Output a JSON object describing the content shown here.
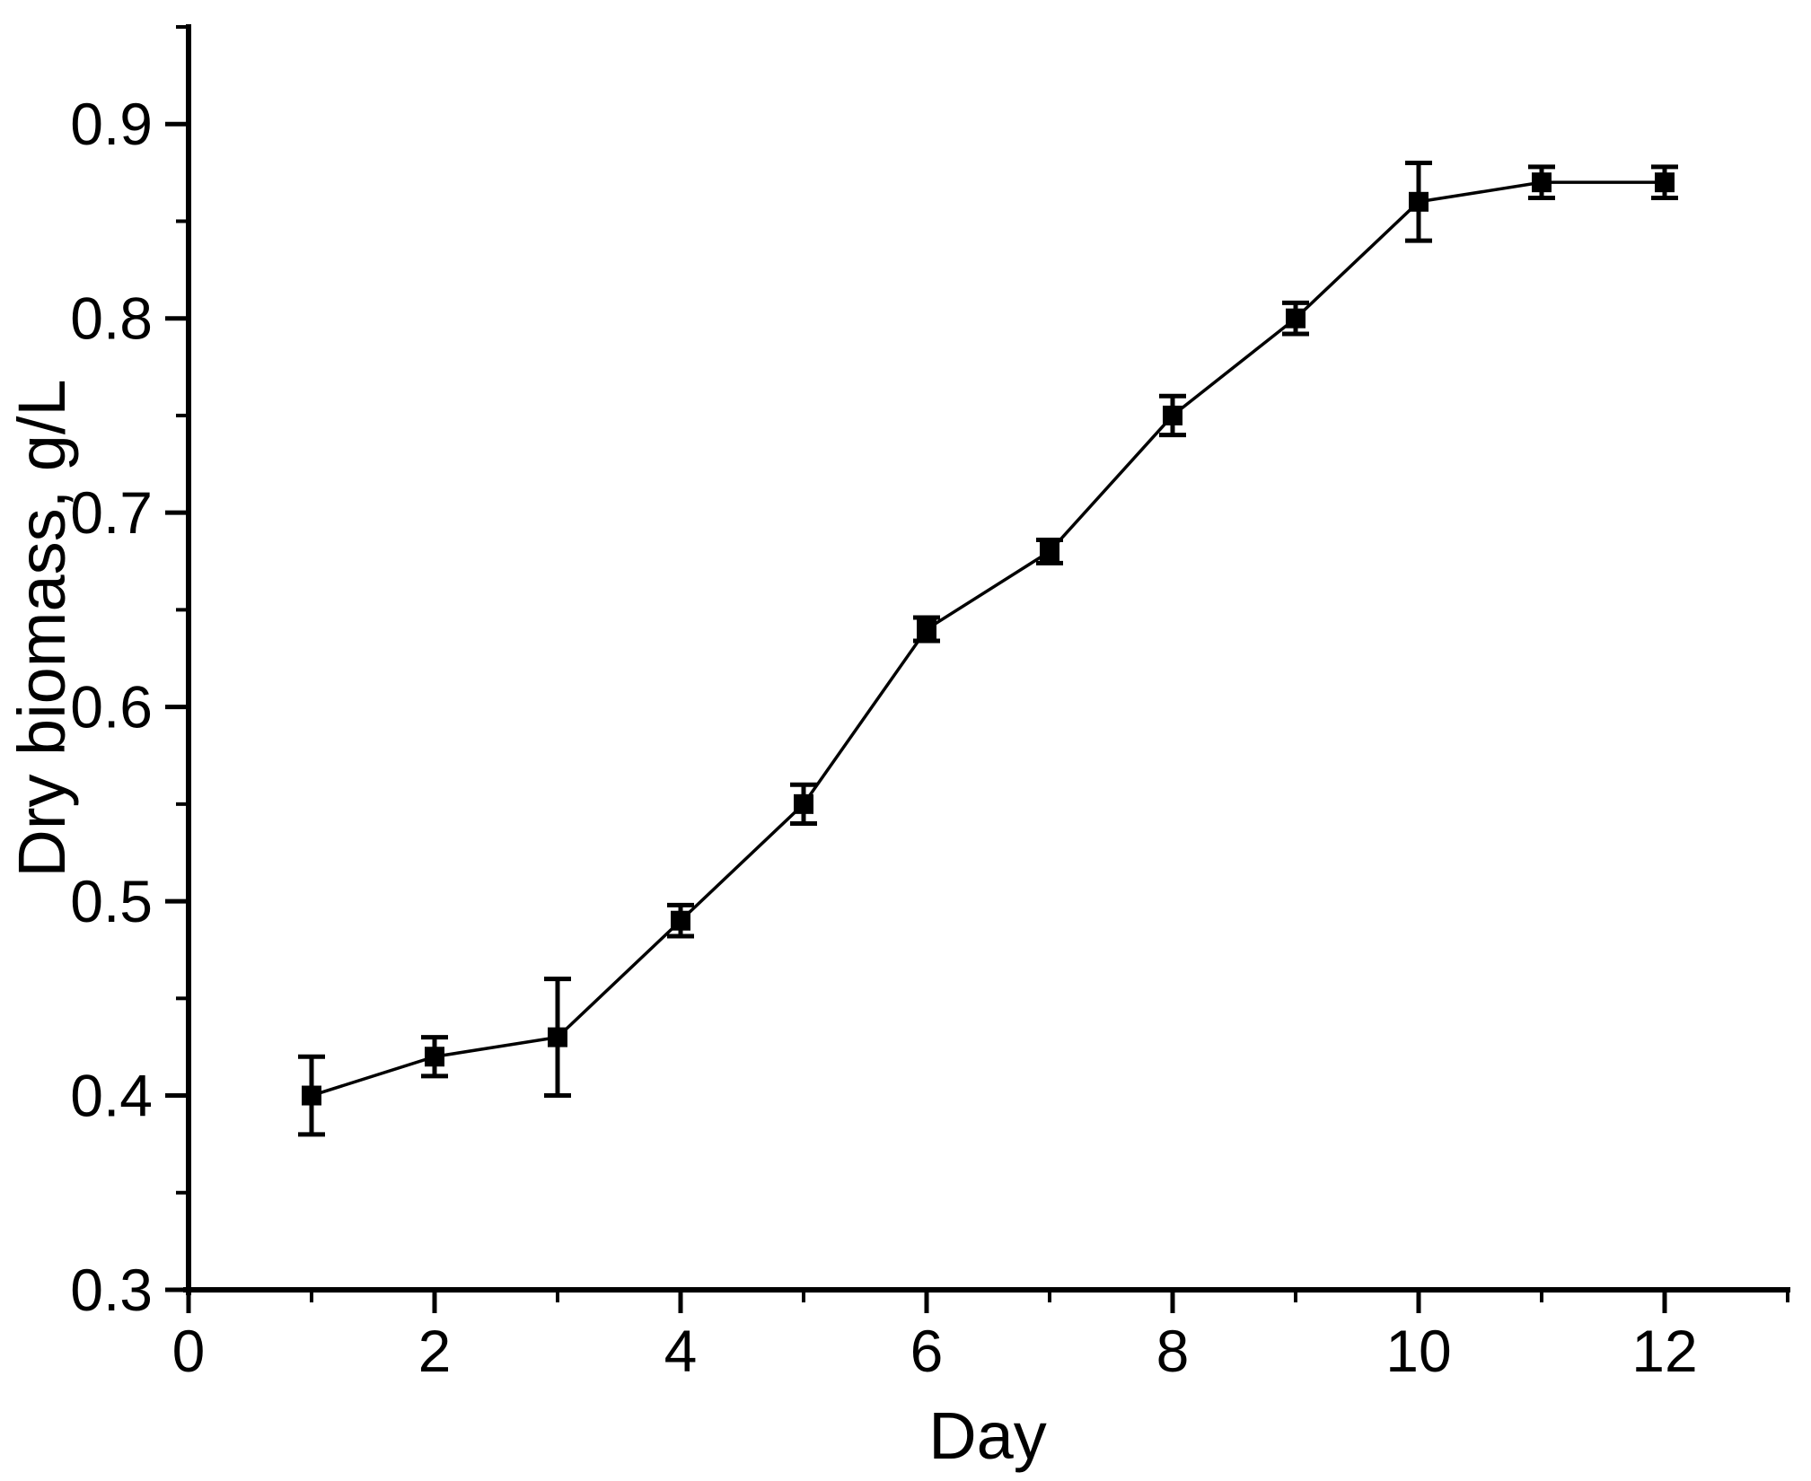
{
  "page": {
    "background": "#ffffff"
  },
  "chart_data": {
    "type": "line",
    "title": "",
    "xlabel": "Day",
    "ylabel": "Dry biomass, g/L",
    "x": [
      1,
      2,
      3,
      4,
      5,
      6,
      7,
      8,
      9,
      10,
      11,
      12
    ],
    "series": [
      {
        "name": "Dry biomass",
        "values": [
          0.4,
          0.42,
          0.43,
          0.49,
          0.55,
          0.64,
          0.68,
          0.75,
          0.8,
          0.86,
          0.87,
          0.87
        ],
        "errors": [
          0.02,
          0.01,
          0.03,
          0.008,
          0.01,
          0.006,
          0.006,
          0.01,
          0.008,
          0.02,
          0.008,
          0.008
        ]
      }
    ],
    "xlim": [
      0,
      13
    ],
    "ylim": [
      0.3,
      0.95
    ],
    "x_major_ticks": [
      0,
      2,
      4,
      6,
      8,
      10,
      12
    ],
    "x_major_tick_labels": [
      "0",
      "2",
      "4",
      "6",
      "8",
      "10",
      "12"
    ],
    "x_minor_ticks": [
      1,
      3,
      5,
      7,
      9,
      11,
      13
    ],
    "y_major_ticks": [
      0.3,
      0.4,
      0.5,
      0.6,
      0.7,
      0.8,
      0.9
    ],
    "y_major_tick_labels": [
      "0.3",
      "0.4",
      "0.5",
      "0.6",
      "0.7",
      "0.8",
      "0.9"
    ],
    "y_minor_ticks": [
      0.35,
      0.45,
      0.55,
      0.65,
      0.75,
      0.85,
      0.95
    ],
    "marker": "filled-square",
    "error_bars": true,
    "grid": false,
    "legend": null,
    "colors": {
      "line": "#000000",
      "marker": "#000000",
      "axis": "#000000",
      "text": "#000000",
      "background": "#ffffff"
    }
  }
}
